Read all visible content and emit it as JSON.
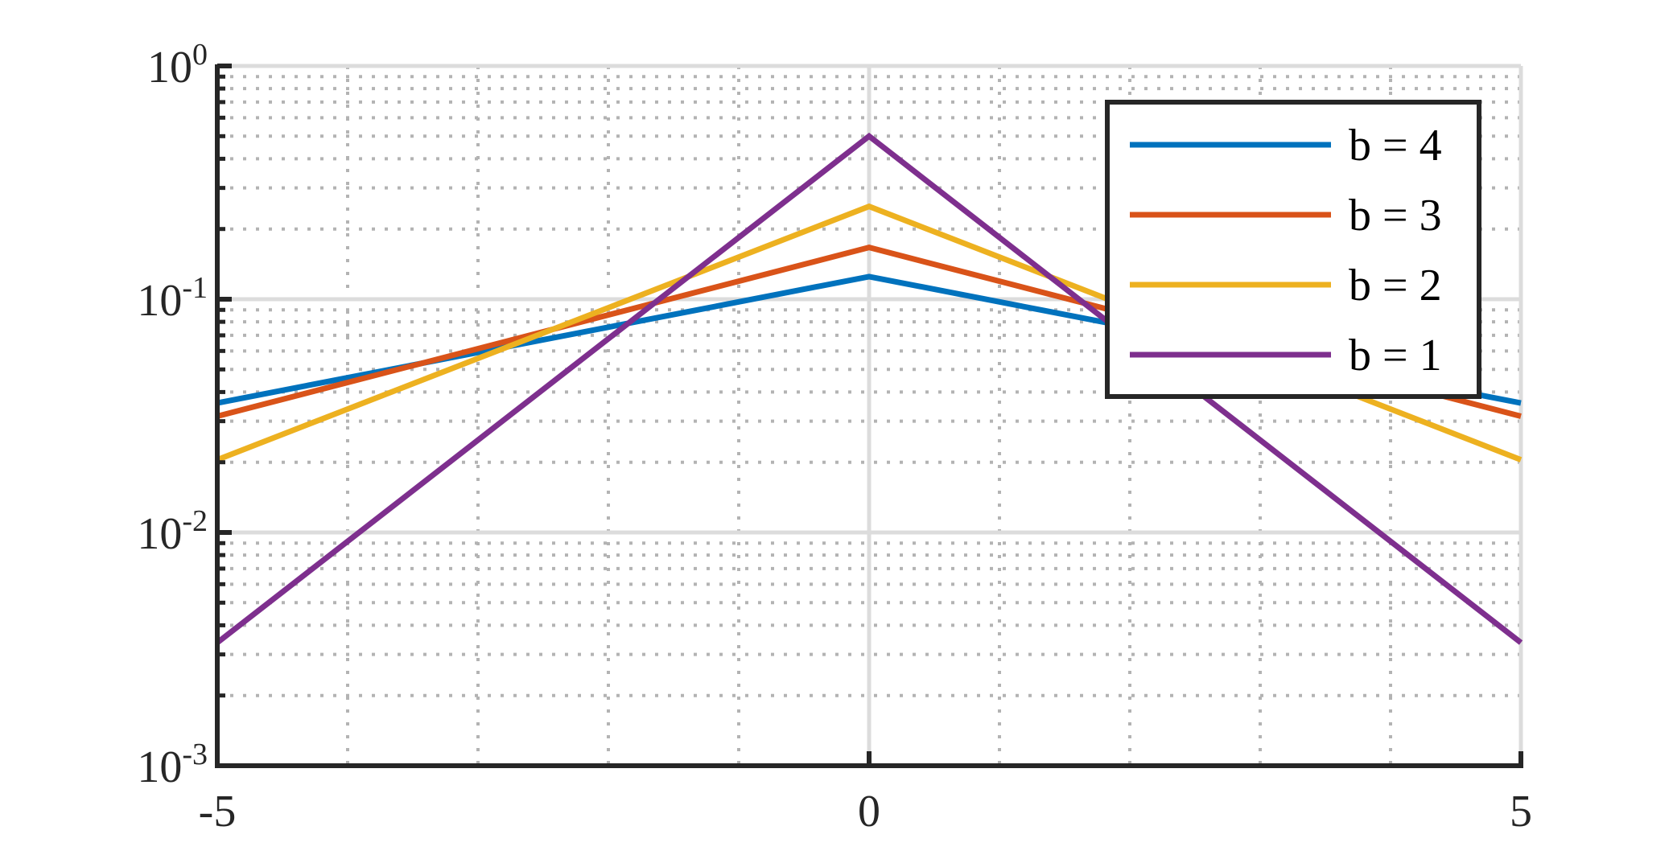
{
  "chart_data": {
    "type": "line",
    "title": "",
    "xlabel": "",
    "ylabel": "",
    "xlim": [
      -5,
      5
    ],
    "ylim": [
      0.001,
      1
    ],
    "yscale": "log",
    "grid": {
      "major": true,
      "minor": true
    },
    "legend_position": "top-right",
    "x_ticks": [
      {
        "value": -5,
        "label": "-5"
      },
      {
        "value": 0,
        "label": "0"
      },
      {
        "value": 5,
        "label": "5"
      }
    ],
    "y_ticks": [
      {
        "value": 0.001,
        "base": "10",
        "exp": "-3"
      },
      {
        "value": 0.01,
        "base": "10",
        "exp": "-2"
      },
      {
        "value": 0.1,
        "base": "10",
        "exp": "-1"
      },
      {
        "value": 1,
        "base": "10",
        "exp": "0"
      }
    ],
    "x": [
      -5,
      0,
      5
    ],
    "series": [
      {
        "name": "b = 4",
        "color": "#0072BD",
        "values": [
          0.0359,
          0.125,
          0.0359
        ]
      },
      {
        "name": "b = 3",
        "color": "#D95319",
        "values": [
          0.0315,
          0.1667,
          0.0315
        ]
      },
      {
        "name": "b = 2",
        "color": "#EDB120",
        "values": [
          0.0205,
          0.25,
          0.0205
        ]
      },
      {
        "name": "b = 1",
        "color": "#7E2F8E",
        "values": [
          0.00337,
          0.5,
          0.00337
        ]
      }
    ]
  }
}
